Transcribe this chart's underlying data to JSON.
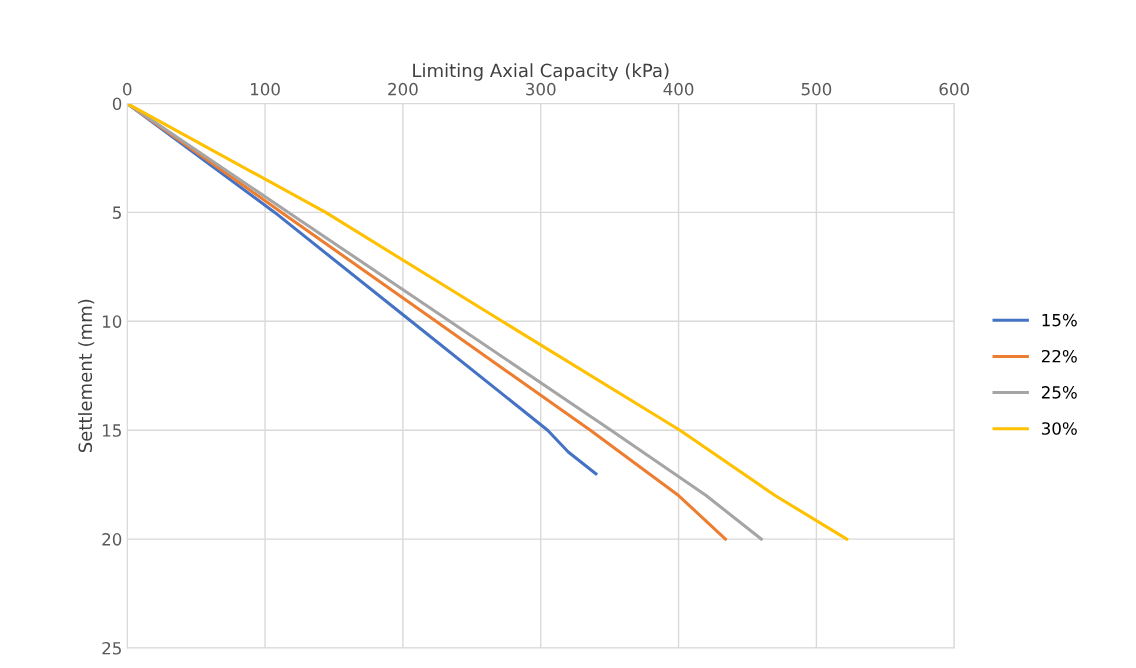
{
  "chart_data": {
    "type": "line",
    "xlabel": "Limiting Axial Capacity (kPa)",
    "ylabel": "Settlement (mm)",
    "xlim": [
      0,
      600
    ],
    "xticks": [
      0,
      100,
      200,
      300,
      400,
      500,
      600
    ],
    "ylim": [
      25,
      0
    ],
    "yticks": [
      0,
      5,
      10,
      15,
      20,
      25
    ],
    "grid": true,
    "legend": "right",
    "marker": "none",
    "line_style": "solid",
    "series": [
      {
        "name": "15%",
        "color": "#4472c4",
        "x": [
          0,
          107,
          206,
          305,
          320,
          340
        ],
        "values": [
          0,
          5,
          10,
          15,
          16,
          17
        ]
      },
      {
        "name": "22%",
        "color": "#ed7d31",
        "x": [
          0,
          112,
          224,
          336,
          400,
          434
        ],
        "values": [
          0,
          5,
          10,
          15,
          18,
          20
        ]
      },
      {
        "name": "25%",
        "color": "#a5a5a5",
        "x": [
          0,
          117,
          234,
          351,
          420,
          460
        ],
        "values": [
          0,
          5,
          10,
          15,
          18,
          20
        ]
      },
      {
        "name": "30%",
        "color": "#ffc000",
        "x": [
          0,
          144,
          272,
          401,
          470,
          522
        ],
        "values": [
          0,
          5,
          10,
          15,
          18,
          20
        ]
      }
    ]
  }
}
